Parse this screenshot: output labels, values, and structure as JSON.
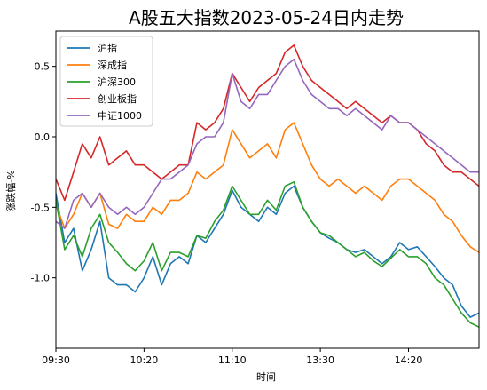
{
  "chart_data": {
    "type": "line",
    "title": "A股五大指数2023-05-24日内走势",
    "xlabel": "时间",
    "ylabel": "涨跌幅-%",
    "x_ticks": [
      "09:30",
      "10:20",
      "11:10",
      "13:30",
      "14:20"
    ],
    "y_ticks": [
      "0.5",
      "0.0",
      "-0.5",
      "-1.0"
    ],
    "y_tick_values": [
      0.5,
      0.0,
      -0.5,
      -1.0
    ],
    "xlim": [
      0,
      240
    ],
    "ylim": [
      -1.5,
      0.75
    ],
    "x_tick_values": [
      0,
      50,
      100,
      150,
      200
    ],
    "grid": false,
    "legend_position": "top-left",
    "series": [
      {
        "name": "沪指",
        "color": "#1f77b4",
        "points": [
          [
            0,
            -0.4
          ],
          [
            5,
            -0.75
          ],
          [
            10,
            -0.65
          ],
          [
            15,
            -0.95
          ],
          [
            20,
            -0.8
          ],
          [
            25,
            -0.6
          ],
          [
            30,
            -1.0
          ],
          [
            35,
            -1.05
          ],
          [
            40,
            -1.05
          ],
          [
            45,
            -1.1
          ],
          [
            50,
            -1.0
          ],
          [
            55,
            -0.85
          ],
          [
            60,
            -1.05
          ],
          [
            65,
            -0.9
          ],
          [
            70,
            -0.85
          ],
          [
            75,
            -0.9
          ],
          [
            80,
            -0.7
          ],
          [
            85,
            -0.75
          ],
          [
            90,
            -0.65
          ],
          [
            95,
            -0.55
          ],
          [
            100,
            -0.38
          ],
          [
            105,
            -0.5
          ],
          [
            110,
            -0.55
          ],
          [
            115,
            -0.6
          ],
          [
            120,
            -0.5
          ],
          [
            125,
            -0.55
          ],
          [
            130,
            -0.4
          ],
          [
            135,
            -0.35
          ],
          [
            140,
            -0.5
          ],
          [
            145,
            -0.6
          ],
          [
            150,
            -0.68
          ],
          [
            155,
            -0.72
          ],
          [
            160,
            -0.75
          ],
          [
            165,
            -0.8
          ],
          [
            170,
            -0.82
          ],
          [
            175,
            -0.8
          ],
          [
            180,
            -0.85
          ],
          [
            185,
            -0.9
          ],
          [
            190,
            -0.85
          ],
          [
            195,
            -0.75
          ],
          [
            200,
            -0.8
          ],
          [
            205,
            -0.78
          ],
          [
            210,
            -0.85
          ],
          [
            215,
            -0.92
          ],
          [
            220,
            -1.0
          ],
          [
            225,
            -1.05
          ],
          [
            230,
            -1.2
          ],
          [
            235,
            -1.28
          ],
          [
            240,
            -1.25
          ]
        ]
      },
      {
        "name": "深成指",
        "color": "#ff7f0e",
        "points": [
          [
            0,
            -0.48
          ],
          [
            5,
            -0.65
          ],
          [
            10,
            -0.55
          ],
          [
            15,
            -0.4
          ],
          [
            20,
            -0.5
          ],
          [
            25,
            -0.4
          ],
          [
            30,
            -0.62
          ],
          [
            35,
            -0.65
          ],
          [
            40,
            -0.55
          ],
          [
            45,
            -0.6
          ],
          [
            50,
            -0.6
          ],
          [
            55,
            -0.5
          ],
          [
            60,
            -0.55
          ],
          [
            65,
            -0.45
          ],
          [
            70,
            -0.45
          ],
          [
            75,
            -0.4
          ],
          [
            80,
            -0.25
          ],
          [
            85,
            -0.3
          ],
          [
            90,
            -0.25
          ],
          [
            95,
            -0.2
          ],
          [
            100,
            0.05
          ],
          [
            105,
            -0.05
          ],
          [
            110,
            -0.15
          ],
          [
            115,
            -0.1
          ],
          [
            120,
            -0.05
          ],
          [
            125,
            -0.15
          ],
          [
            130,
            0.05
          ],
          [
            135,
            0.1
          ],
          [
            140,
            -0.05
          ],
          [
            145,
            -0.2
          ],
          [
            150,
            -0.3
          ],
          [
            155,
            -0.35
          ],
          [
            160,
            -0.3
          ],
          [
            165,
            -0.35
          ],
          [
            170,
            -0.4
          ],
          [
            175,
            -0.35
          ],
          [
            180,
            -0.4
          ],
          [
            185,
            -0.45
          ],
          [
            190,
            -0.35
          ],
          [
            195,
            -0.3
          ],
          [
            200,
            -0.3
          ],
          [
            205,
            -0.35
          ],
          [
            210,
            -0.4
          ],
          [
            215,
            -0.45
          ],
          [
            220,
            -0.55
          ],
          [
            225,
            -0.6
          ],
          [
            230,
            -0.7
          ],
          [
            235,
            -0.78
          ],
          [
            240,
            -0.82
          ]
        ]
      },
      {
        "name": "沪深300",
        "color": "#2ca02c",
        "points": [
          [
            0,
            -0.45
          ],
          [
            5,
            -0.8
          ],
          [
            10,
            -0.7
          ],
          [
            15,
            -0.85
          ],
          [
            20,
            -0.65
          ],
          [
            25,
            -0.55
          ],
          [
            30,
            -0.75
          ],
          [
            35,
            -0.82
          ],
          [
            40,
            -0.9
          ],
          [
            45,
            -0.95
          ],
          [
            50,
            -0.88
          ],
          [
            55,
            -0.75
          ],
          [
            60,
            -0.95
          ],
          [
            65,
            -0.82
          ],
          [
            70,
            -0.82
          ],
          [
            75,
            -0.85
          ],
          [
            80,
            -0.7
          ],
          [
            85,
            -0.72
          ],
          [
            90,
            -0.6
          ],
          [
            95,
            -0.52
          ],
          [
            100,
            -0.35
          ],
          [
            105,
            -0.45
          ],
          [
            110,
            -0.55
          ],
          [
            115,
            -0.55
          ],
          [
            120,
            -0.45
          ],
          [
            125,
            -0.52
          ],
          [
            130,
            -0.35
          ],
          [
            135,
            -0.32
          ],
          [
            140,
            -0.5
          ],
          [
            145,
            -0.6
          ],
          [
            150,
            -0.68
          ],
          [
            155,
            -0.7
          ],
          [
            160,
            -0.75
          ],
          [
            165,
            -0.8
          ],
          [
            170,
            -0.85
          ],
          [
            175,
            -0.82
          ],
          [
            180,
            -0.88
          ],
          [
            185,
            -0.92
          ],
          [
            190,
            -0.86
          ],
          [
            195,
            -0.8
          ],
          [
            200,
            -0.85
          ],
          [
            205,
            -0.85
          ],
          [
            210,
            -0.9
          ],
          [
            215,
            -1.0
          ],
          [
            220,
            -1.05
          ],
          [
            225,
            -1.15
          ],
          [
            230,
            -1.25
          ],
          [
            235,
            -1.32
          ],
          [
            240,
            -1.35
          ]
        ]
      },
      {
        "name": "创业板指",
        "color": "#d62728",
        "points": [
          [
            0,
            -0.3
          ],
          [
            5,
            -0.45
          ],
          [
            10,
            -0.25
          ],
          [
            15,
            -0.05
          ],
          [
            20,
            -0.15
          ],
          [
            25,
            0.0
          ],
          [
            30,
            -0.2
          ],
          [
            35,
            -0.15
          ],
          [
            40,
            -0.1
          ],
          [
            45,
            -0.2
          ],
          [
            50,
            -0.2
          ],
          [
            55,
            -0.25
          ],
          [
            60,
            -0.3
          ],
          [
            65,
            -0.25
          ],
          [
            70,
            -0.2
          ],
          [
            75,
            -0.2
          ],
          [
            80,
            0.1
          ],
          [
            85,
            0.05
          ],
          [
            90,
            0.1
          ],
          [
            95,
            0.2
          ],
          [
            100,
            0.45
          ],
          [
            105,
            0.35
          ],
          [
            110,
            0.25
          ],
          [
            115,
            0.35
          ],
          [
            120,
            0.4
          ],
          [
            125,
            0.45
          ],
          [
            130,
            0.6
          ],
          [
            135,
            0.65
          ],
          [
            140,
            0.5
          ],
          [
            145,
            0.4
          ],
          [
            150,
            0.35
          ],
          [
            155,
            0.3
          ],
          [
            160,
            0.25
          ],
          [
            165,
            0.2
          ],
          [
            170,
            0.25
          ],
          [
            175,
            0.2
          ],
          [
            180,
            0.15
          ],
          [
            185,
            0.1
          ],
          [
            190,
            0.15
          ],
          [
            195,
            0.1
          ],
          [
            200,
            0.1
          ],
          [
            205,
            0.05
          ],
          [
            210,
            -0.05
          ],
          [
            215,
            -0.1
          ],
          [
            220,
            -0.2
          ],
          [
            225,
            -0.25
          ],
          [
            230,
            -0.25
          ],
          [
            235,
            -0.3
          ],
          [
            240,
            -0.35
          ]
        ]
      },
      {
        "name": "中证1000",
        "color": "#9467bd",
        "points": [
          [
            0,
            -0.6
          ],
          [
            5,
            -0.65
          ],
          [
            10,
            -0.45
          ],
          [
            15,
            -0.4
          ],
          [
            20,
            -0.5
          ],
          [
            25,
            -0.4
          ],
          [
            30,
            -0.5
          ],
          [
            35,
            -0.55
          ],
          [
            40,
            -0.5
          ],
          [
            45,
            -0.55
          ],
          [
            50,
            -0.5
          ],
          [
            55,
            -0.4
          ],
          [
            60,
            -0.3
          ],
          [
            65,
            -0.3
          ],
          [
            70,
            -0.25
          ],
          [
            75,
            -0.2
          ],
          [
            80,
            -0.05
          ],
          [
            85,
            0.0
          ],
          [
            90,
            0.0
          ],
          [
            95,
            0.1
          ],
          [
            100,
            0.45
          ],
          [
            105,
            0.25
          ],
          [
            110,
            0.2
          ],
          [
            115,
            0.3
          ],
          [
            120,
            0.3
          ],
          [
            125,
            0.4
          ],
          [
            130,
            0.5
          ],
          [
            135,
            0.55
          ],
          [
            140,
            0.4
          ],
          [
            145,
            0.3
          ],
          [
            150,
            0.25
          ],
          [
            155,
            0.2
          ],
          [
            160,
            0.2
          ],
          [
            165,
            0.15
          ],
          [
            170,
            0.2
          ],
          [
            175,
            0.15
          ],
          [
            180,
            0.1
          ],
          [
            185,
            0.05
          ],
          [
            190,
            0.15
          ],
          [
            195,
            0.1
          ],
          [
            200,
            0.1
          ],
          [
            205,
            0.05
          ],
          [
            210,
            0.0
          ],
          [
            215,
            -0.05
          ],
          [
            220,
            -0.1
          ],
          [
            225,
            -0.15
          ],
          [
            230,
            -0.2
          ],
          [
            235,
            -0.25
          ],
          [
            240,
            -0.25
          ]
        ]
      }
    ]
  }
}
